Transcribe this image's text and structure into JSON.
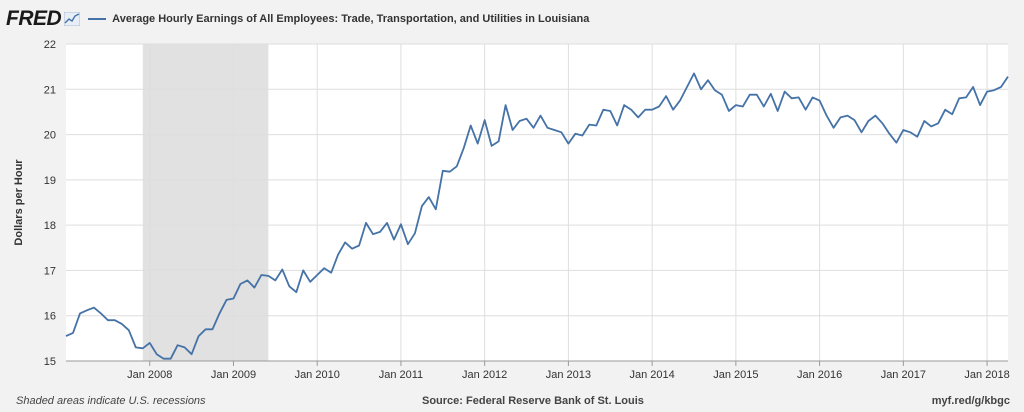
{
  "header": {
    "logo_text": "FRED",
    "series_title": "Average Hourly Earnings of All Employees: Trade, Transportation, and Utilities in Louisiana"
  },
  "footer": {
    "note": "Shaded areas indicate U.S. recessions",
    "source": "Source: Federal Reserve Bank of St. Louis",
    "link": "myf.red/g/kbgc"
  },
  "colors": {
    "line": "#4572a7",
    "recession": "#e1e1e1",
    "plot_background": "#ffffff",
    "grid": "#dedede"
  },
  "chart_data": {
    "type": "line",
    "title": "Average Hourly Earnings of All Employees: Trade, Transportation, and Utilities in Louisiana",
    "xlabel": "",
    "ylabel": "Dollars per Hour",
    "ylim": [
      15,
      22
    ],
    "yticks": [
      15,
      16,
      17,
      18,
      19,
      20,
      21,
      22
    ],
    "xlim": [
      "2007-01",
      "2018-04"
    ],
    "xticks": [
      "Jan 2008",
      "Jan 2009",
      "Jan 2010",
      "Jan 2011",
      "Jan 2012",
      "Jan 2013",
      "Jan 2014",
      "Jan 2015",
      "Jan 2016",
      "Jan 2017",
      "Jan 2018"
    ],
    "grid": true,
    "recessions": [
      {
        "start": "2007-12",
        "end": "2009-06"
      }
    ],
    "start": "2007-01",
    "frequency": "monthly",
    "values": [
      15.55,
      15.62,
      16.05,
      16.12,
      16.18,
      16.05,
      15.9,
      15.9,
      15.82,
      15.68,
      15.3,
      15.28,
      15.4,
      15.15,
      15.05,
      15.05,
      15.35,
      15.3,
      15.15,
      15.55,
      15.7,
      15.7,
      16.05,
      16.35,
      16.38,
      16.7,
      16.78,
      16.62,
      16.9,
      16.88,
      16.78,
      17.02,
      16.65,
      16.52,
      17.0,
      16.75,
      16.9,
      17.05,
      16.95,
      17.35,
      17.62,
      17.48,
      17.55,
      18.05,
      17.8,
      17.85,
      18.05,
      17.68,
      18.02,
      17.58,
      17.82,
      18.42,
      18.62,
      18.35,
      19.2,
      19.18,
      19.3,
      19.7,
      20.2,
      19.8,
      20.32,
      19.75,
      19.85,
      20.65,
      20.1,
      20.3,
      20.35,
      20.15,
      20.42,
      20.15,
      20.1,
      20.05,
      19.8,
      20.02,
      19.98,
      20.22,
      20.2,
      20.55,
      20.52,
      20.2,
      20.65,
      20.55,
      20.38,
      20.55,
      20.55,
      20.62,
      20.85,
      20.55,
      20.75,
      21.05,
      21.35,
      21.0,
      21.2,
      20.98,
      20.88,
      20.52,
      20.65,
      20.62,
      20.88,
      20.88,
      20.62,
      20.9,
      20.52,
      20.95,
      20.8,
      20.82,
      20.55,
      20.82,
      20.75,
      20.42,
      20.15,
      20.38,
      20.42,
      20.32,
      20.05,
      20.3,
      20.42,
      20.25,
      20.02,
      19.82,
      20.1,
      20.05,
      19.95,
      20.3,
      20.18,
      20.25,
      20.55,
      20.45,
      20.8,
      20.82,
      21.05,
      20.65,
      20.95,
      20.98,
      21.05,
      21.28
    ]
  }
}
